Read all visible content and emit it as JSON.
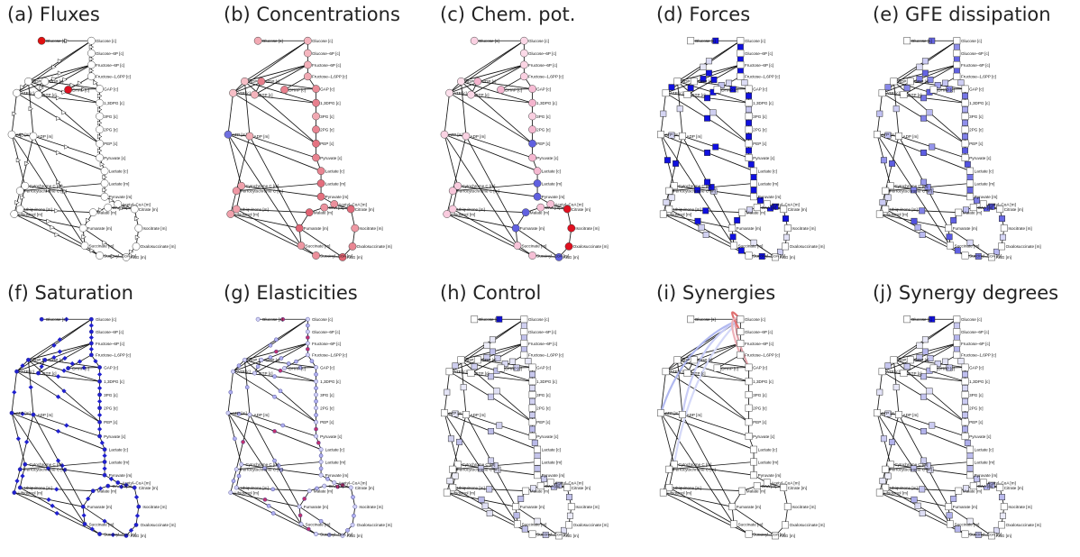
{
  "panels": [
    {
      "id": "a",
      "title": "(a) Fluxes",
      "style": "flux"
    },
    {
      "id": "b",
      "title": "(b) Concentrations",
      "style": "conc"
    },
    {
      "id": "c",
      "title": "(c) Chem. pot.",
      "style": "chem"
    },
    {
      "id": "d",
      "title": "(d) Forces",
      "style": "forces"
    },
    {
      "id": "e",
      "title": "(e) GFE dissipation",
      "style": "gfe"
    },
    {
      "id": "f",
      "title": "(f) Saturation",
      "style": "sat"
    },
    {
      "id": "g",
      "title": "(g) Elasticities",
      "style": "elast"
    },
    {
      "id": "h",
      "title": "(h) Control",
      "style": "control"
    },
    {
      "id": "i",
      "title": "(i) Synergies",
      "style": "synergy"
    },
    {
      "id": "j",
      "title": "(j) Synergy degrees",
      "style": "syndeg"
    }
  ],
  "metabolite_labels": {
    "glucose_s": "Glucose [s]",
    "glucose_c": "Glucose [c]",
    "g6p": "Glucose–6P [c]",
    "f6p": "Fructose–6P [c]",
    "f16bp": "Fructose–1,6PP [c]",
    "gap": "GAP [c]",
    "dhap": "DHAP [c]",
    "bpg13": "1,3DPG [c]",
    "pg3": "3PG [c]",
    "pg2": "2PG [c]",
    "pep": "PEP [c]",
    "pyr_c": "Pyruvate [c]",
    "lac_c": "Lactate [c]",
    "lac_m": "Lactate [m]",
    "pyr_m": "Pyruvate [m]",
    "accoa": "Acetyl–CoA [m]",
    "oaa": "OAA [m]",
    "cit": "Citrate [m]",
    "icit": "Isocitrate [m]",
    "oxs": "Oxalosuccinate [m]",
    "akg": "AKG [m]",
    "succoa": "Succinyl–CoA [m]",
    "succ": "Succinate [m]",
    "fum": "Fumarate [m]",
    "mal": "Malate [m]",
    "adp_c": "ADP [c]",
    "atp_c": "ATP [c]",
    "gtp_c": "GTP [c]",
    "gdp_c": "GDP [c]",
    "atp_m": "ATP [m]",
    "adp_m": "ADP [m]",
    "cytc_ox": "Cytochrome C [m]",
    "cytc_red": "Ferrocytochrome C [m]",
    "ubq": "Ubiquinone [m]",
    "ubqh": "Ubiquinol [m]"
  }
}
